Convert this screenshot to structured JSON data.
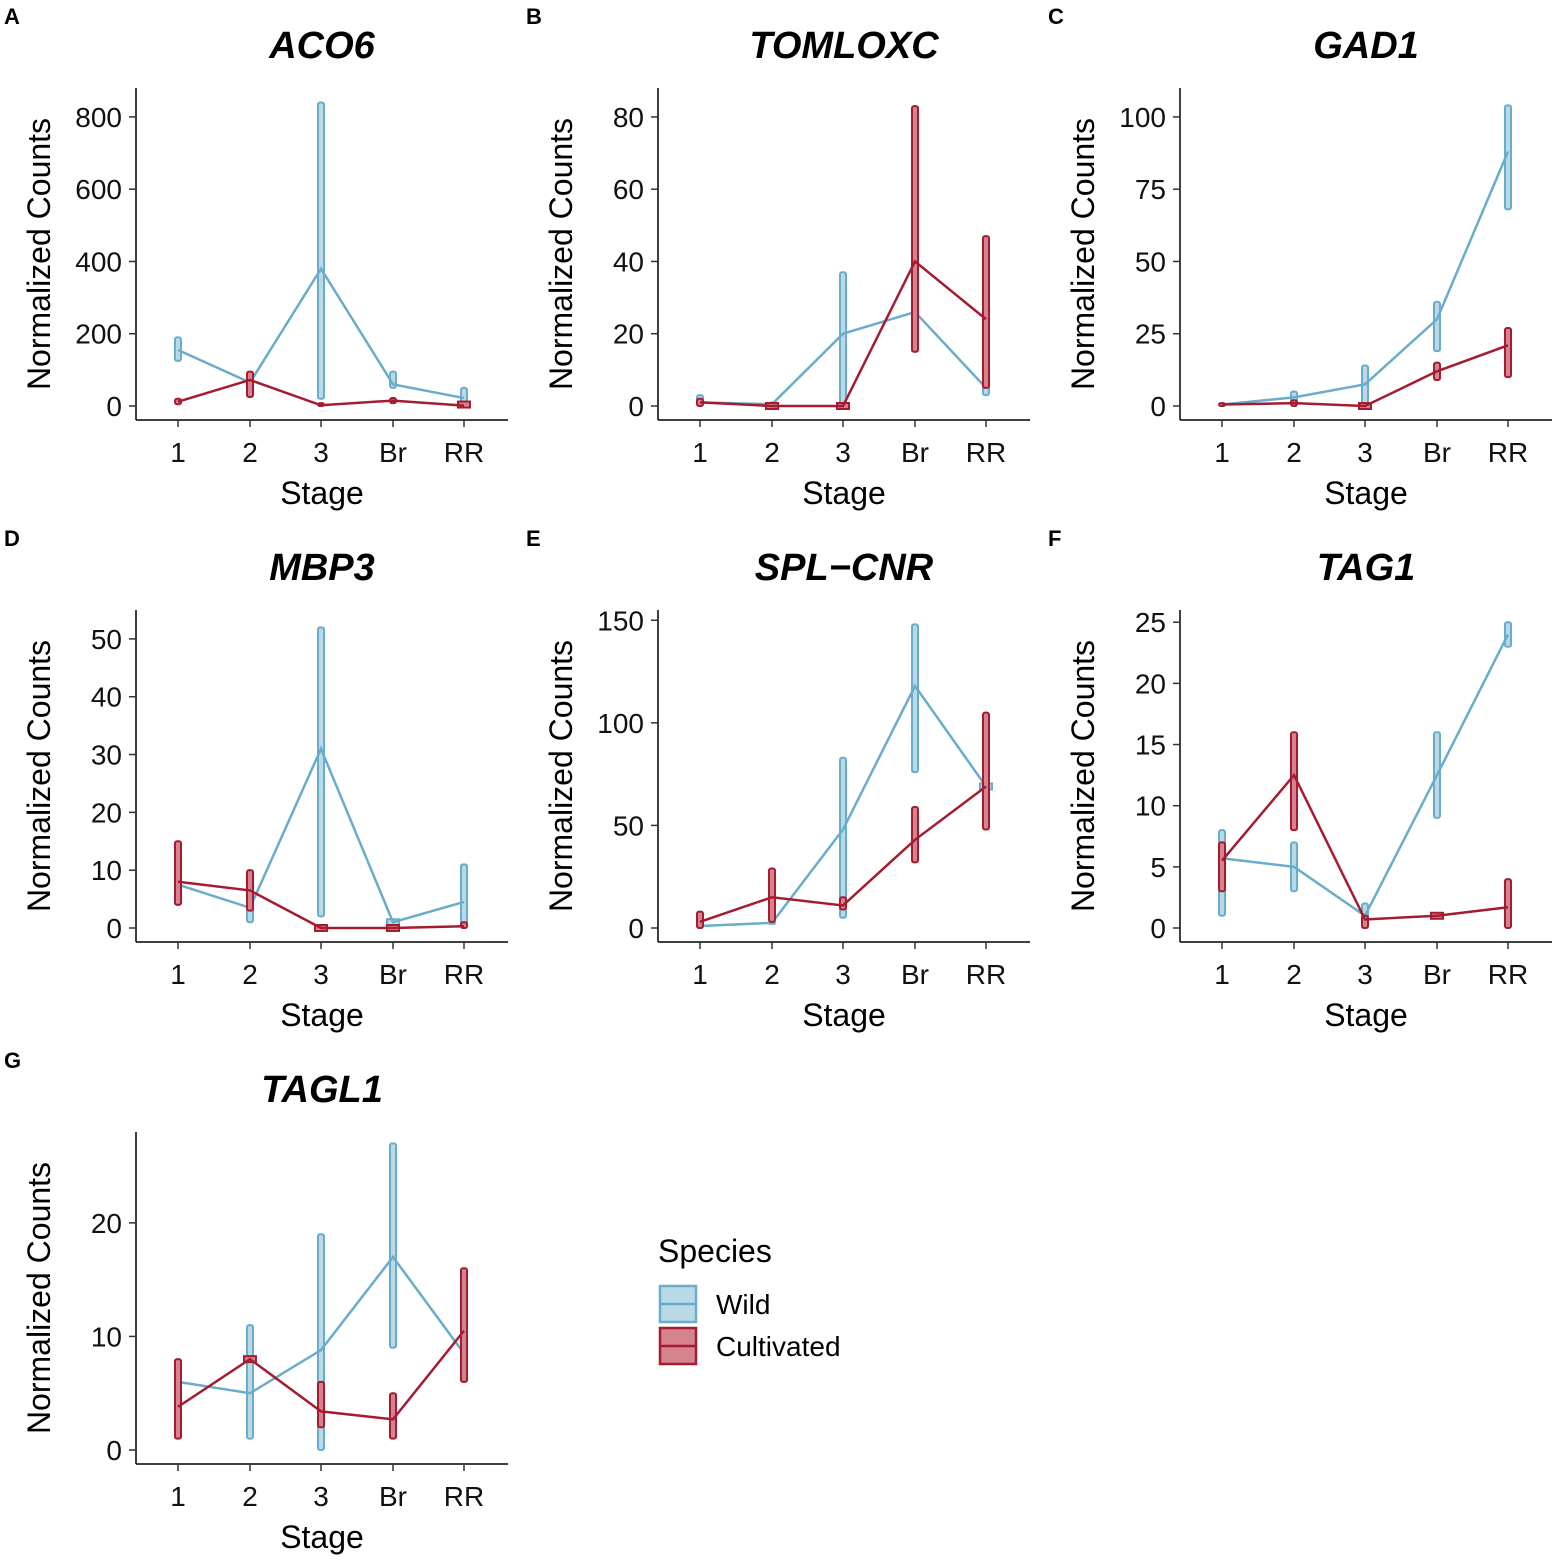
{
  "figure": {
    "x_label": "Stage",
    "y_label": "Normalized Counts",
    "categories": [
      "1",
      "2",
      "3",
      "Br",
      "RR"
    ]
  },
  "colors": {
    "wild": "#6aaccb",
    "wild_fill": "#b9d9e7",
    "cultivated": "#a51c30",
    "cultivated_fill": "#d4838f"
  },
  "legend": {
    "title": "Species",
    "items": [
      "Wild",
      "Cultivated"
    ]
  },
  "chart_data": [
    {
      "letter": "A",
      "title": "ACO6",
      "type": "line",
      "ylim": [
        0,
        880
      ],
      "yticks": [
        0,
        200,
        400,
        600,
        800
      ],
      "categories": [
        "1",
        "2",
        "3",
        "Br",
        "RR"
      ],
      "series": [
        {
          "name": "Wild",
          "values": [
            155,
            65,
            380,
            60,
            22
          ],
          "min": [
            125,
            55,
            20,
            50,
            5
          ],
          "max": [
            190,
            75,
            840,
            95,
            50
          ]
        },
        {
          "name": "Cultivated",
          "values": [
            12,
            72,
            2,
            15,
            1
          ],
          "min": [
            5,
            25,
            0,
            8,
            0
          ],
          "max": [
            20,
            95,
            8,
            22,
            4
          ]
        }
      ]
    },
    {
      "letter": "B",
      "title": "TOMLOXC",
      "type": "line",
      "ylim": [
        0,
        88
      ],
      "yticks": [
        0,
        20,
        40,
        60,
        80
      ],
      "categories": [
        "1",
        "2",
        "3",
        "Br",
        "RR"
      ],
      "series": [
        {
          "name": "Wild",
          "values": [
            1,
            0.5,
            20,
            26,
            5
          ],
          "min": [
            0,
            0,
            0,
            15,
            3
          ],
          "max": [
            3,
            1,
            37,
            38,
            7
          ]
        },
        {
          "name": "Cultivated",
          "values": [
            1,
            0,
            0,
            40,
            24
          ],
          "min": [
            0,
            0,
            0,
            15,
            5
          ],
          "max": [
            2,
            0,
            0,
            83,
            47
          ]
        }
      ]
    },
    {
      "letter": "C",
      "title": "GAD1",
      "type": "line",
      "ylim": [
        0,
        110
      ],
      "yticks": [
        0,
        25,
        50,
        75,
        100
      ],
      "categories": [
        "1",
        "2",
        "3",
        "Br",
        "RR"
      ],
      "series": [
        {
          "name": "Wild",
          "values": [
            0.5,
            3,
            7.5,
            30,
            88
          ],
          "min": [
            0,
            1,
            0,
            19,
            68
          ],
          "max": [
            1,
            5,
            14,
            36,
            104
          ]
        },
        {
          "name": "Cultivated",
          "values": [
            0.5,
            1,
            0,
            12,
            21
          ],
          "min": [
            0,
            0,
            0,
            9,
            10
          ],
          "max": [
            1,
            2,
            0,
            15,
            27
          ]
        }
      ]
    },
    {
      "letter": "D",
      "title": "MBP3",
      "type": "line",
      "ylim": [
        0,
        55
      ],
      "yticks": [
        0,
        10,
        20,
        30,
        40,
        50
      ],
      "categories": [
        "1",
        "2",
        "3",
        "Br",
        "RR"
      ],
      "series": [
        {
          "name": "Wild",
          "values": [
            7.5,
            3.5,
            31,
            1,
            4.5
          ],
          "min": [
            6,
            1,
            2,
            1,
            0
          ],
          "max": [
            9,
            7,
            52,
            1,
            11
          ]
        },
        {
          "name": "Cultivated",
          "values": [
            8,
            6.5,
            0,
            0,
            0.3
          ],
          "min": [
            4,
            3,
            0,
            0,
            0
          ],
          "max": [
            15,
            10,
            0,
            0,
            1
          ]
        }
      ]
    },
    {
      "letter": "E",
      "title": "SPL−CNR",
      "type": "line",
      "ylim": [
        0,
        155
      ],
      "yticks": [
        0,
        50,
        100,
        150
      ],
      "categories": [
        "1",
        "2",
        "3",
        "Br",
        "RR"
      ],
      "series": [
        {
          "name": "Wild",
          "values": [
            1,
            2.5,
            48,
            118,
            69
          ],
          "min": [
            0,
            2,
            5,
            76,
            69
          ],
          "max": [
            2,
            3,
            83,
            148,
            69
          ]
        },
        {
          "name": "Cultivated",
          "values": [
            3,
            15,
            11,
            43,
            69
          ],
          "min": [
            0,
            3,
            9,
            32,
            48
          ],
          "max": [
            8,
            29,
            15,
            59,
            105
          ]
        }
      ]
    },
    {
      "letter": "F",
      "title": "TAG1",
      "type": "line",
      "ylim": [
        0,
        26
      ],
      "yticks": [
        0,
        5,
        10,
        15,
        20,
        25
      ],
      "categories": [
        "1",
        "2",
        "3",
        "Br",
        "RR"
      ],
      "series": [
        {
          "name": "Wild",
          "values": [
            5.7,
            5,
            1,
            12.5,
            24
          ],
          "min": [
            1,
            3,
            0,
            9,
            23
          ],
          "max": [
            8,
            7,
            2,
            16,
            25
          ]
        },
        {
          "name": "Cultivated",
          "values": [
            5.5,
            12.5,
            0.7,
            1,
            1.7
          ],
          "min": [
            3,
            8,
            0,
            1,
            0
          ],
          "max": [
            7,
            16,
            1,
            1,
            4
          ]
        }
      ]
    },
    {
      "letter": "G",
      "title": "TAGL1",
      "type": "line",
      "ylim": [
        0,
        28
      ],
      "yticks": [
        0,
        10,
        20
      ],
      "categories": [
        "1",
        "2",
        "3",
        "Br",
        "RR"
      ],
      "series": [
        {
          "name": "Wild",
          "values": [
            6,
            5,
            8.8,
            17,
            8.5
          ],
          "min": [
            5,
            1,
            0,
            9,
            6
          ],
          "max": [
            7,
            11,
            19,
            27,
            11
          ]
        },
        {
          "name": "Cultivated",
          "values": [
            3.8,
            8,
            3.4,
            2.7,
            10.5
          ],
          "min": [
            1,
            8,
            2,
            1,
            6
          ],
          "max": [
            8,
            8,
            6,
            5,
            16
          ]
        }
      ]
    }
  ]
}
